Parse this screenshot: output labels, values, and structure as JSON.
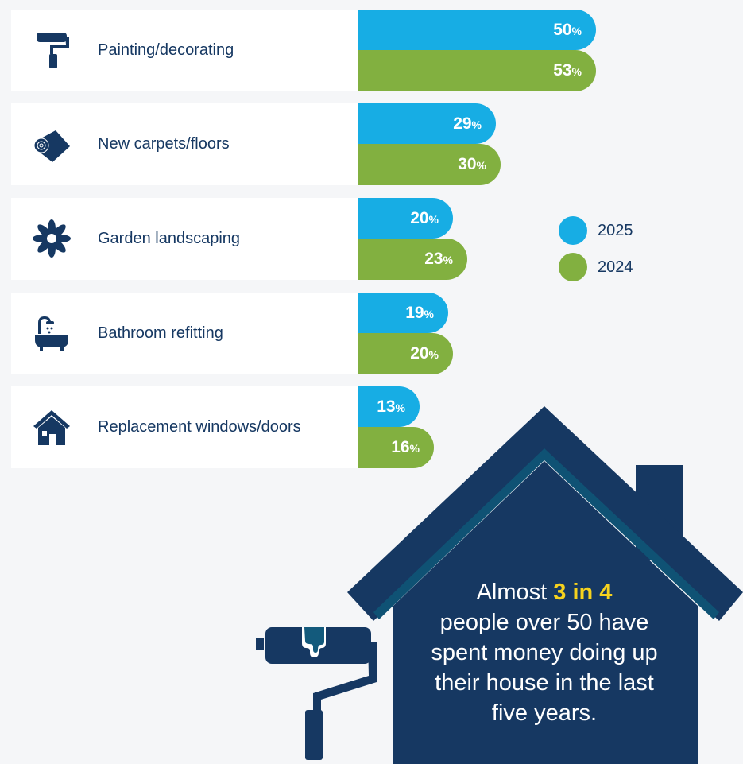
{
  "chart_data": {
    "type": "bar",
    "orientation": "horizontal",
    "categories": [
      "Painting/decorating",
      "New carpets/floors",
      "Garden landscaping",
      "Bathroom refitting",
      "Replacement windows/doors"
    ],
    "series": [
      {
        "name": "2025",
        "color": "#17ade4",
        "values": [
          50,
          29,
          20,
          19,
          13
        ]
      },
      {
        "name": "2024",
        "color": "#82b040",
        "values": [
          53,
          30,
          23,
          20,
          16
        ]
      }
    ],
    "value_suffix": "%",
    "legend_position": "right"
  },
  "rows": [
    {
      "label": "Painting/decorating",
      "icon": "paint-roller-icon"
    },
    {
      "label": "New carpets/floors",
      "icon": "carpet-roll-icon"
    },
    {
      "label": "Garden landscaping",
      "icon": "flower-icon"
    },
    {
      "label": "Bathroom refitting",
      "icon": "bathtub-icon"
    },
    {
      "label": "Replacement windows/doors",
      "icon": "house-icon"
    }
  ],
  "legend": [
    {
      "label": "2025"
    },
    {
      "label": "2024"
    }
  ],
  "callout": {
    "prefix": "Almost ",
    "highlight": "3 in 4",
    "rest": "people over 50 have spent money doing up their house in the last five years."
  },
  "colors": {
    "navy": "#163862",
    "blue": "#17ade4",
    "green": "#82b040",
    "yellow": "#f6d21e",
    "stripe": "#0f5274"
  }
}
